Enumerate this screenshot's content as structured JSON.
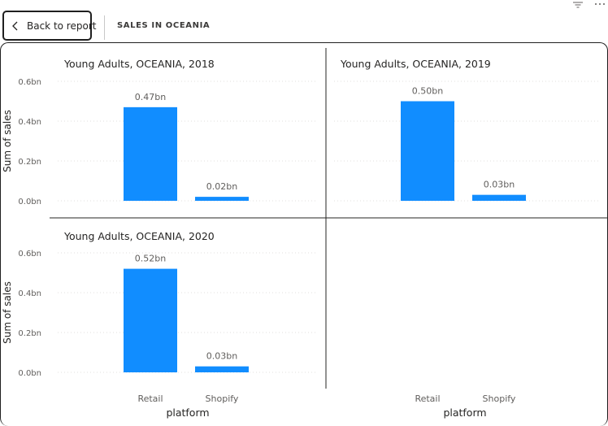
{
  "header": {
    "back_label": "Back to report",
    "page_title": "SALES IN OCEANIA",
    "filter_icon": "filter-icon",
    "more_icon": "more-options-icon",
    "back_icon": "chevron-left-icon"
  },
  "chart_data": {
    "type": "bar",
    "small_multiples": true,
    "xlabel": "platform",
    "ylabel": "Sum of sales",
    "ylim": [
      0,
      0.6
    ],
    "yticks": [
      "0.6bn",
      "0.4bn",
      "0.2bn",
      "0.0bn"
    ],
    "ytick_values": [
      0.6,
      0.4,
      0.2,
      0.0
    ],
    "categories": [
      "Retail",
      "Shopify"
    ],
    "bar_color": "#118DFF",
    "grid": true,
    "panels": [
      {
        "title": "Young Adults, OCEANIA, 2018",
        "values": [
          0.47,
          0.02
        ],
        "labels": [
          "0.47bn",
          "0.02bn"
        ]
      },
      {
        "title": "Young Adults, OCEANIA, 2019",
        "values": [
          0.5,
          0.03
        ],
        "labels": [
          "0.50bn",
          "0.03bn"
        ]
      },
      {
        "title": "Young Adults, OCEANIA, 2020",
        "values": [
          0.52,
          0.03
        ],
        "labels": [
          "0.52bn",
          "0.03bn"
        ]
      }
    ]
  }
}
